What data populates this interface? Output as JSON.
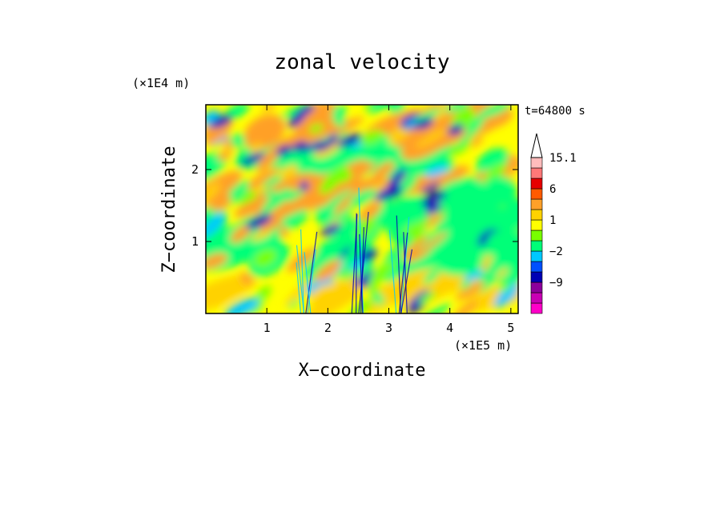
{
  "chart_data": {
    "type": "heatmap",
    "title": "zonal velocity",
    "xlabel": "X−coordinate",
    "ylabel": "Z−coordinate",
    "x_unit": "(×1E5 m)",
    "y_unit": "(×1E4 m)",
    "time_label": "t=64800 s",
    "xlim": [
      0,
      5.12
    ],
    "ylim": [
      0,
      2.9
    ],
    "x_ticks": [
      1,
      2,
      3,
      4,
      5
    ],
    "x_tick_labels": [
      "1",
      "2",
      "3",
      "4",
      "5"
    ],
    "y_ticks": [
      1,
      2
    ],
    "y_tick_labels": [
      "1",
      "2"
    ],
    "colorbar": {
      "levels": [
        -15,
        -12,
        -9,
        -6,
        -4,
        -2,
        -1,
        0,
        1,
        2,
        4,
        6,
        9,
        12,
        15.1
      ],
      "colors": [
        "#ff00c8",
        "#c800b4",
        "#8c009c",
        "#0000b4",
        "#0050ff",
        "#00c8ff",
        "#00ff78",
        "#78ff00",
        "#ffff00",
        "#ffd200",
        "#ffa028",
        "#ff5a00",
        "#e60000",
        "#ff7878",
        "#ffbcbc"
      ],
      "overflow_color": "#ffffff",
      "tick_labels": [
        "15.1",
        "6",
        "1",
        "−2",
        "−9"
      ],
      "tick_values": [
        15.1,
        6,
        1,
        -2,
        -9
      ]
    }
  }
}
